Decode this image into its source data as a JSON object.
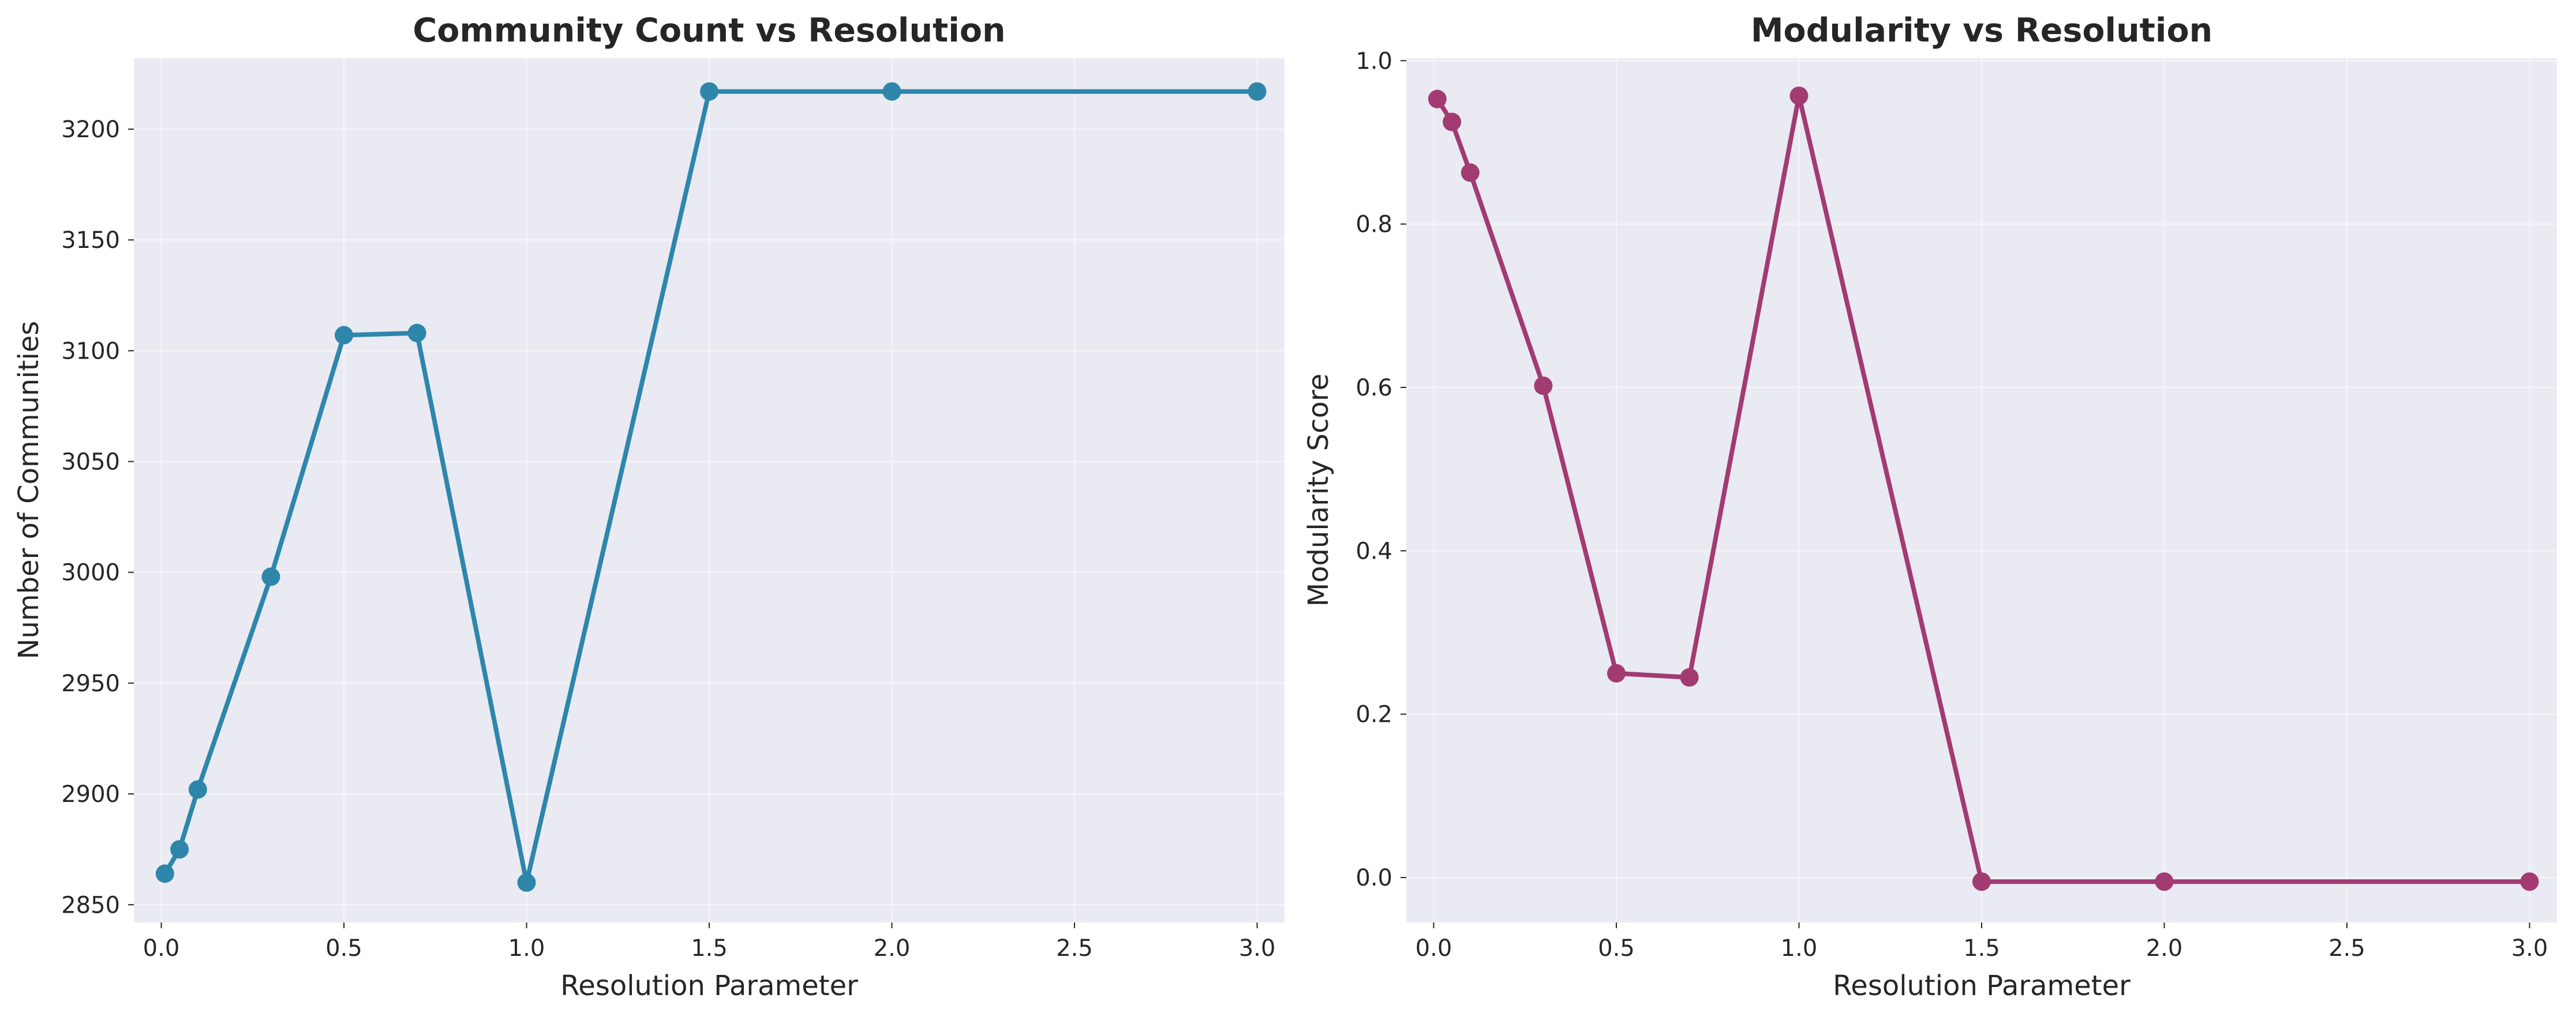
{
  "chart_data": [
    {
      "type": "line",
      "title": "Community Count vs Resolution",
      "xlabel": "Resolution Parameter",
      "ylabel": "Number of Communities",
      "color": "#2e86ab",
      "grid": true,
      "xlim": [
        -0.075,
        3.075
      ],
      "ylim": [
        2842,
        3232
      ],
      "xticks": [
        0.0,
        0.5,
        1.0,
        1.5,
        2.0,
        2.5,
        3.0
      ],
      "xtick_labels": [
        "0.0",
        "0.5",
        "1.0",
        "1.5",
        "2.0",
        "2.5",
        "3.0"
      ],
      "yticks": [
        2850,
        2900,
        2950,
        3000,
        3050,
        3100,
        3150,
        3200
      ],
      "ytick_labels": [
        "2850",
        "2900",
        "2950",
        "3000",
        "3050",
        "3100",
        "3150",
        "3200"
      ],
      "x": [
        0.01,
        0.05,
        0.1,
        0.3,
        0.5,
        0.7,
        1.0,
        1.5,
        2.0,
        3.0
      ],
      "y": [
        2864,
        2875,
        2902,
        2998,
        3107,
        3108,
        2860,
        3217,
        3217,
        3217
      ]
    },
    {
      "type": "line",
      "title": "Modularity vs Resolution",
      "xlabel": "Resolution Parameter",
      "ylabel": "Modularity Score",
      "color": "#a23b72",
      "grid": true,
      "xlim": [
        -0.075,
        3.075
      ],
      "ylim": [
        -0.055,
        1.003
      ],
      "xticks": [
        0.0,
        0.5,
        1.0,
        1.5,
        2.0,
        2.5,
        3.0
      ],
      "xtick_labels": [
        "0.0",
        "0.5",
        "1.0",
        "1.5",
        "2.0",
        "2.5",
        "3.0"
      ],
      "yticks": [
        0.0,
        0.2,
        0.4,
        0.6,
        0.8,
        1.0
      ],
      "ytick_labels": [
        "0.0",
        "0.2",
        "0.4",
        "0.6",
        "0.8",
        "1.0"
      ],
      "x": [
        0.01,
        0.05,
        0.1,
        0.3,
        0.5,
        0.7,
        1.0,
        1.5,
        2.0,
        3.0
      ],
      "y": [
        0.953,
        0.925,
        0.863,
        0.602,
        0.25,
        0.245,
        0.957,
        -0.005,
        -0.005,
        -0.005
      ]
    }
  ]
}
